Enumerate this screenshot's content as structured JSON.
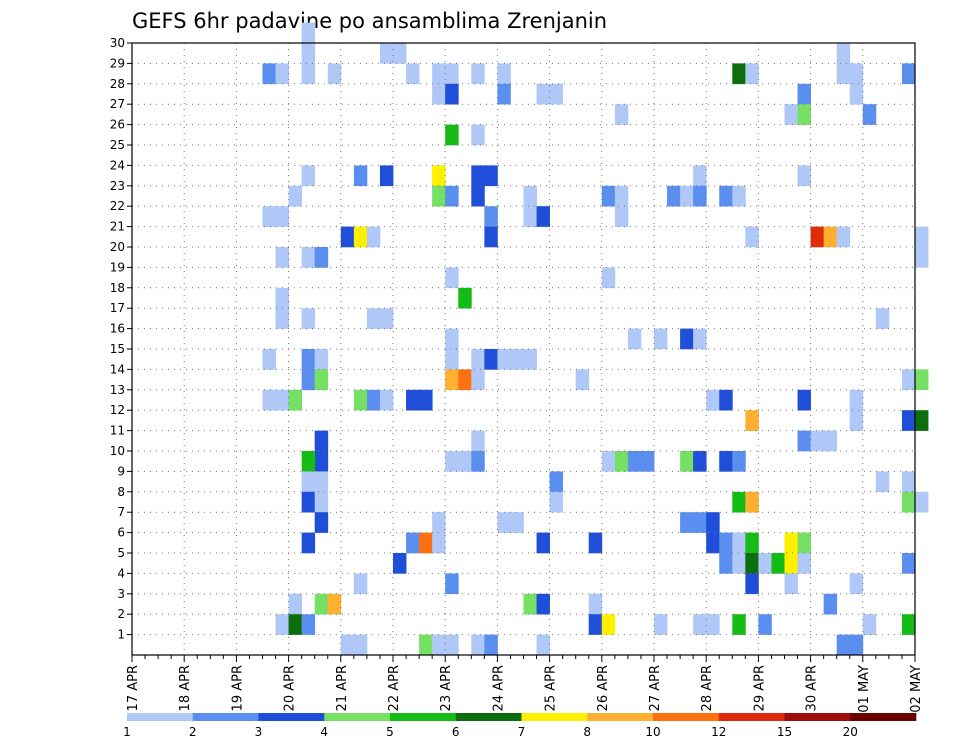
{
  "chart_data": {
    "type": "heatmap",
    "title": "GEFS 6hr padavine po ansamblima Zrenjanin",
    "xlabel": "",
    "ylabel": "",
    "x_start": "17 APR 00Z",
    "x_step_hours": 6,
    "x_range": [
      0,
      60
    ],
    "x_tick_labels": [
      "17 APR",
      "18 APR",
      "19 APR",
      "20 APR",
      "21 APR",
      "22 APR",
      "23 APR",
      "24 APR",
      "25 APR",
      "26 APR",
      "27 APR",
      "28 APR",
      "29 APR",
      "30 APR",
      "01 MAY",
      "02 MAY"
    ],
    "y_range": [
      0,
      30
    ],
    "y_tick_labels": [
      "1",
      "2",
      "3",
      "4",
      "5",
      "6",
      "7",
      "8",
      "9",
      "10",
      "11",
      "12",
      "13",
      "14",
      "15",
      "16",
      "17",
      "18",
      "19",
      "20",
      "21",
      "22",
      "23",
      "24",
      "25",
      "26",
      "27",
      "28",
      "29",
      "30"
    ],
    "grid": true,
    "colorbar": {
      "placement": "bottom",
      "levels": [
        "1",
        "2",
        "3",
        "4",
        "5",
        "6",
        "7",
        "8",
        "10",
        "12",
        "15",
        "20"
      ],
      "colors": [
        "#afc8f8",
        "#5a8ff0",
        "#1f4ed8",
        "#76e064",
        "#16bc16",
        "#0c6e0c",
        "#fff000",
        "#ffb030",
        "#ff7010",
        "#e02c0a",
        "#a00c0a",
        "#6a0000"
      ]
    },
    "cells": [
      [
        13,
        30,
        0
      ],
      [
        13,
        29,
        0
      ],
      [
        19,
        29,
        0
      ],
      [
        20,
        29,
        0
      ],
      [
        54,
        29,
        0
      ],
      [
        54,
        28,
        0
      ],
      [
        55,
        28,
        0
      ],
      [
        10,
        28,
        1
      ],
      [
        11,
        28,
        0
      ],
      [
        13,
        28,
        0
      ],
      [
        15,
        28,
        0
      ],
      [
        21,
        28,
        0
      ],
      [
        23,
        28,
        0
      ],
      [
        24,
        28,
        0
      ],
      [
        26,
        28,
        0
      ],
      [
        28,
        28,
        0
      ],
      [
        46,
        28,
        5
      ],
      [
        47,
        28,
        0
      ],
      [
        59,
        28,
        1
      ],
      [
        23,
        27,
        0
      ],
      [
        24,
        27,
        2
      ],
      [
        28,
        27,
        1
      ],
      [
        31,
        27,
        0
      ],
      [
        32,
        27,
        0
      ],
      [
        51,
        27,
        1
      ],
      [
        55,
        27,
        0
      ],
      [
        37,
        26,
        0
      ],
      [
        50,
        26,
        0
      ],
      [
        51,
        26,
        3
      ],
      [
        56,
        26,
        1
      ],
      [
        24,
        25,
        4
      ],
      [
        26,
        25,
        0
      ],
      [
        13,
        23,
        0
      ],
      [
        17,
        23,
        1
      ],
      [
        19,
        23,
        2
      ],
      [
        23,
        23,
        6
      ],
      [
        26,
        23,
        2
      ],
      [
        27,
        23,
        2
      ],
      [
        43,
        23,
        0
      ],
      [
        51,
        23,
        0
      ],
      [
        12,
        22,
        0
      ],
      [
        23,
        22,
        3
      ],
      [
        24,
        22,
        1
      ],
      [
        26,
        22,
        2
      ],
      [
        30,
        22,
        0
      ],
      [
        36,
        22,
        1
      ],
      [
        37,
        22,
        0
      ],
      [
        41,
        22,
        1
      ],
      [
        42,
        22,
        0
      ],
      [
        43,
        22,
        1
      ],
      [
        45,
        22,
        1
      ],
      [
        46,
        22,
        0
      ],
      [
        10,
        21,
        0
      ],
      [
        11,
        21,
        0
      ],
      [
        27,
        21,
        1
      ],
      [
        30,
        21,
        0
      ],
      [
        31,
        21,
        2
      ],
      [
        37,
        21,
        0
      ],
      [
        16,
        20,
        2
      ],
      [
        17,
        20,
        6
      ],
      [
        18,
        20,
        0
      ],
      [
        27,
        20,
        2
      ],
      [
        47,
        20,
        0
      ],
      [
        52,
        20,
        9
      ],
      [
        53,
        20,
        7
      ],
      [
        54,
        20,
        0
      ],
      [
        60,
        20,
        0
      ],
      [
        11,
        19,
        0
      ],
      [
        13,
        19,
        0
      ],
      [
        14,
        19,
        1
      ],
      [
        60,
        19,
        0
      ],
      [
        24,
        18,
        0
      ],
      [
        36,
        18,
        0
      ],
      [
        11,
        17,
        0
      ],
      [
        25,
        17,
        4
      ],
      [
        11,
        16,
        0
      ],
      [
        13,
        16,
        0
      ],
      [
        18,
        16,
        0
      ],
      [
        19,
        16,
        0
      ],
      [
        57,
        16,
        0
      ],
      [
        24,
        15,
        0
      ],
      [
        38,
        15,
        0
      ],
      [
        40,
        15,
        0
      ],
      [
        42,
        15,
        2
      ],
      [
        43,
        15,
        0
      ],
      [
        10,
        14,
        0
      ],
      [
        13,
        14,
        1
      ],
      [
        14,
        14,
        0
      ],
      [
        24,
        14,
        0
      ],
      [
        26,
        14,
        0
      ],
      [
        27,
        14,
        2
      ],
      [
        28,
        14,
        0
      ],
      [
        29,
        14,
        0
      ],
      [
        30,
        14,
        0
      ],
      [
        13,
        13,
        1
      ],
      [
        14,
        13,
        3
      ],
      [
        24,
        13,
        7
      ],
      [
        25,
        13,
        8
      ],
      [
        26,
        13,
        0
      ],
      [
        34,
        13,
        0
      ],
      [
        59,
        13,
        0
      ],
      [
        60,
        13,
        3
      ],
      [
        10,
        12,
        0
      ],
      [
        11,
        12,
        0
      ],
      [
        12,
        12,
        3
      ],
      [
        17,
        12,
        3
      ],
      [
        18,
        12,
        1
      ],
      [
        19,
        12,
        0
      ],
      [
        21,
        12,
        2
      ],
      [
        22,
        12,
        2
      ],
      [
        44,
        12,
        0
      ],
      [
        45,
        12,
        2
      ],
      [
        51,
        12,
        2
      ],
      [
        55,
        12,
        0
      ],
      [
        47,
        11,
        7
      ],
      [
        55,
        11,
        0
      ],
      [
        59,
        11,
        2
      ],
      [
        60,
        11,
        5
      ],
      [
        14,
        10,
        2
      ],
      [
        26,
        10,
        0
      ],
      [
        51,
        10,
        1
      ],
      [
        52,
        10,
        0
      ],
      [
        53,
        10,
        0
      ],
      [
        14,
        9,
        2
      ],
      [
        13,
        9,
        4
      ],
      [
        24,
        9,
        0
      ],
      [
        25,
        9,
        0
      ],
      [
        26,
        9,
        1
      ],
      [
        36,
        9,
        0
      ],
      [
        37,
        9,
        3
      ],
      [
        38,
        9,
        1
      ],
      [
        39,
        9,
        1
      ],
      [
        42,
        9,
        3
      ],
      [
        43,
        9,
        2
      ],
      [
        45,
        9,
        2
      ],
      [
        46,
        9,
        1
      ],
      [
        13,
        8,
        0
      ],
      [
        14,
        8,
        0
      ],
      [
        32,
        8,
        1
      ],
      [
        57,
        8,
        0
      ],
      [
        59,
        8,
        0
      ],
      [
        13,
        7,
        2
      ],
      [
        14,
        7,
        0
      ],
      [
        32,
        7,
        0
      ],
      [
        46,
        7,
        4
      ],
      [
        47,
        7,
        7
      ],
      [
        59,
        7,
        3
      ],
      [
        60,
        7,
        0
      ],
      [
        14,
        6,
        2
      ],
      [
        23,
        6,
        0
      ],
      [
        28,
        6,
        0
      ],
      [
        29,
        6,
        0
      ],
      [
        42,
        6,
        1
      ],
      [
        43,
        6,
        1
      ],
      [
        44,
        6,
        2
      ],
      [
        13,
        5,
        2
      ],
      [
        21,
        5,
        1
      ],
      [
        22,
        5,
        8
      ],
      [
        23,
        5,
        0
      ],
      [
        31,
        5,
        2
      ],
      [
        35,
        5,
        2
      ],
      [
        44,
        5,
        2
      ],
      [
        45,
        5,
        1
      ],
      [
        46,
        5,
        0
      ],
      [
        47,
        5,
        4
      ],
      [
        50,
        5,
        6
      ],
      [
        51,
        5,
        3
      ],
      [
        20,
        4,
        2
      ],
      [
        45,
        4,
        1
      ],
      [
        46,
        4,
        0
      ],
      [
        47,
        4,
        5
      ],
      [
        48,
        4,
        0
      ],
      [
        49,
        4,
        4
      ],
      [
        50,
        4,
        6
      ],
      [
        51,
        4,
        0
      ],
      [
        59,
        4,
        1
      ],
      [
        17,
        3,
        0
      ],
      [
        24,
        3,
        1
      ],
      [
        47,
        3,
        2
      ],
      [
        50,
        3,
        0
      ],
      [
        55,
        3,
        0
      ],
      [
        12,
        2,
        0
      ],
      [
        14,
        2,
        3
      ],
      [
        15,
        2,
        7
      ],
      [
        30,
        2,
        3
      ],
      [
        31,
        2,
        2
      ],
      [
        35,
        2,
        0
      ],
      [
        53,
        2,
        1
      ],
      [
        11,
        1,
        0
      ],
      [
        12,
        1,
        5
      ],
      [
        13,
        1,
        1
      ],
      [
        35,
        1,
        2
      ],
      [
        36,
        1,
        6
      ],
      [
        40,
        1,
        0
      ],
      [
        43,
        1,
        0
      ],
      [
        44,
        1,
        0
      ],
      [
        46,
        1,
        4
      ],
      [
        48,
        1,
        1
      ],
      [
        56,
        1,
        0
      ],
      [
        59,
        1,
        4
      ],
      [
        16,
        0,
        0
      ],
      [
        17,
        0,
        0
      ],
      [
        22,
        0,
        3
      ],
      [
        23,
        0,
        0
      ],
      [
        24,
        0,
        0
      ],
      [
        26,
        0,
        0
      ],
      [
        27,
        0,
        1
      ],
      [
        31,
        0,
        0
      ],
      [
        54,
        0,
        1
      ],
      [
        55,
        0,
        1
      ]
    ]
  }
}
